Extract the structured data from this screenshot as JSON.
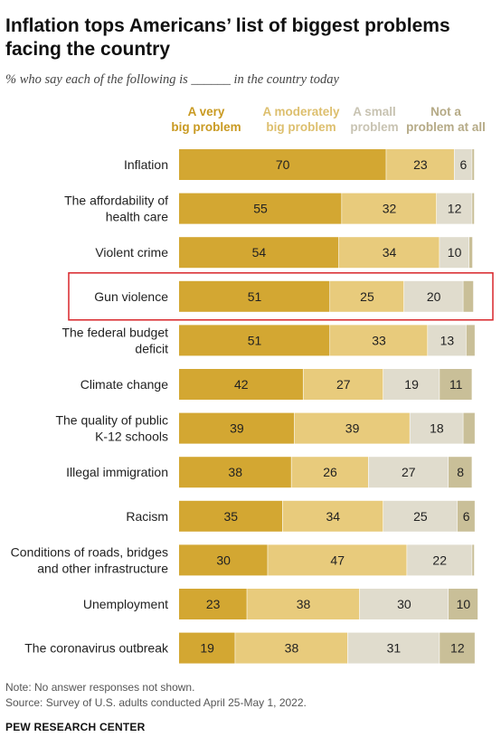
{
  "title": "Inflation tops Americans’ list of biggest problems facing the country",
  "subtitle": "% who say each of the following is ______ in the country today",
  "note": "Note: No answer responses not shown.",
  "source": "Source: Survey of U.S. adults conducted April 25-May 1, 2022.",
  "brand": "PEW RESEARCH CENTER",
  "chart_data": {
    "type": "bar",
    "stacked": true,
    "orientation": "horizontal",
    "highlighted_category": "Gun violence",
    "colors": [
      "#d3a732",
      "#e8cb7c",
      "#e0dccd",
      "#c9bf98"
    ],
    "categories": [
      [
        "Inflation"
      ],
      [
        "The affordability of",
        "health care"
      ],
      [
        "Violent crime"
      ],
      [
        "Gun violence"
      ],
      [
        "The federal budget",
        "deficit"
      ],
      [
        "Climate change"
      ],
      [
        "The quality of public",
        "K-12 schools"
      ],
      [
        "Illegal immigration"
      ],
      [
        "Racism"
      ],
      [
        "Conditions of roads, bridges",
        "and other infrastructure"
      ],
      [
        "Unemployment"
      ],
      [
        "The coronavirus outbreak"
      ]
    ],
    "series": [
      {
        "name": [
          "A very",
          "big problem"
        ],
        "label_color": "#c99a22",
        "values": [
          70,
          55,
          54,
          51,
          51,
          42,
          39,
          38,
          35,
          30,
          23,
          19
        ]
      },
      {
        "name": [
          "A moderately",
          "big problem"
        ],
        "label_color": "#ddbf6e",
        "values": [
          23,
          32,
          34,
          25,
          33,
          27,
          39,
          26,
          34,
          47,
          38,
          38
        ]
      },
      {
        "name": [
          "A small",
          "problem"
        ],
        "label_color": "#c8c3b2",
        "values": [
          6,
          12,
          10,
          20,
          13,
          19,
          18,
          27,
          25,
          22,
          30,
          31
        ]
      },
      {
        "name": [
          "Not a",
          "problem at all"
        ],
        "label_color": "#b5aa86",
        "values": [
          0.8,
          0.8,
          1.2,
          3.5,
          3,
          11,
          4,
          8,
          6,
          0.8,
          10,
          12
        ]
      }
    ],
    "value_labels": [
      [
        "70",
        "23",
        "6",
        ""
      ],
      [
        "55",
        "32",
        "12",
        ""
      ],
      [
        "54",
        "34",
        "10",
        ""
      ],
      [
        "51",
        "25",
        "20",
        ""
      ],
      [
        "51",
        "33",
        "13",
        ""
      ],
      [
        "42",
        "27",
        "19",
        "11"
      ],
      [
        "39",
        "39",
        "18",
        ""
      ],
      [
        "38",
        "26",
        "27",
        "8"
      ],
      [
        "35",
        "34",
        "25",
        "6"
      ],
      [
        "30",
        "47",
        "22",
        ""
      ],
      [
        "23",
        "38",
        "30",
        "10"
      ],
      [
        "19",
        "38",
        "31",
        "12"
      ]
    ],
    "xlim": [
      0,
      100
    ]
  }
}
